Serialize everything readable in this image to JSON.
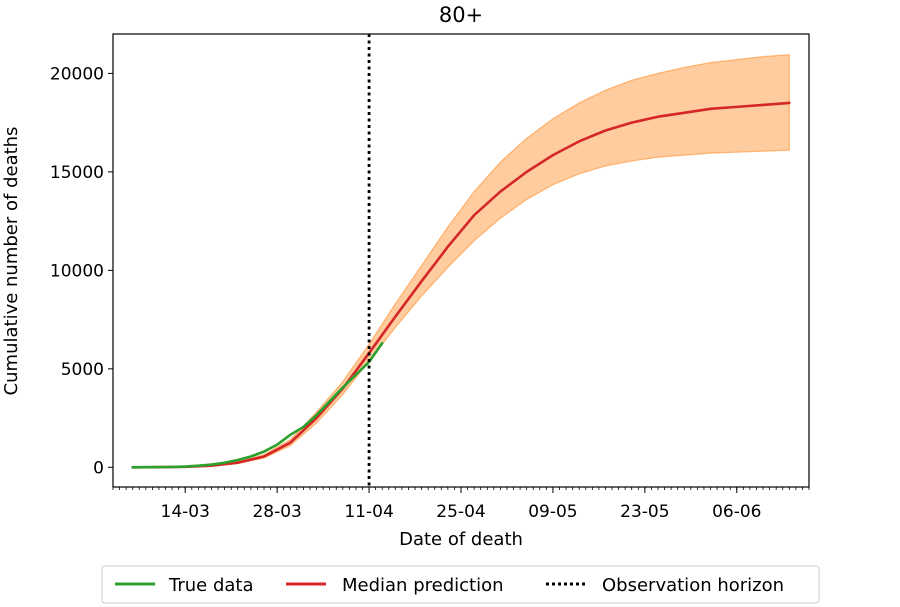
{
  "chart_data": {
    "type": "line",
    "title": "80+",
    "xlabel": "Date of death",
    "ylabel": "Cumulative number of deaths",
    "x_ticks": [
      "14-03",
      "28-03",
      "11-04",
      "25-04",
      "09-05",
      "23-05",
      "06-06"
    ],
    "y_ticks": [
      "0",
      "5000",
      "10000",
      "15000",
      "20000"
    ],
    "ylim": [
      -1000,
      22000
    ],
    "xlim": [
      "2020-03-03",
      "2020-06-17"
    ],
    "grid": false,
    "legend_position": "bottom",
    "observation_horizon": "2020-04-11",
    "series": [
      {
        "name": "True data",
        "color": "#2ca02c",
        "x": [
          "2020-03-06",
          "2020-03-08",
          "2020-03-10",
          "2020-03-12",
          "2020-03-14",
          "2020-03-16",
          "2020-03-18",
          "2020-03-20",
          "2020-03-22",
          "2020-03-24",
          "2020-03-26",
          "2020-03-28",
          "2020-03-30",
          "2020-04-01",
          "2020-04-03",
          "2020-04-05",
          "2020-04-07",
          "2020-04-09",
          "2020-04-11",
          "2020-04-13"
        ],
        "values": [
          0,
          5,
          10,
          20,
          40,
          80,
          140,
          230,
          370,
          550,
          800,
          1150,
          1650,
          2050,
          2650,
          3350,
          4050,
          4700,
          5350,
          6300
        ]
      },
      {
        "name": "Median prediction",
        "color": "#d62728",
        "x": [
          "2020-03-06",
          "2020-03-10",
          "2020-03-14",
          "2020-03-18",
          "2020-03-22",
          "2020-03-26",
          "2020-03-30",
          "2020-04-03",
          "2020-04-07",
          "2020-04-11",
          "2020-04-15",
          "2020-04-19",
          "2020-04-23",
          "2020-04-27",
          "2020-05-01",
          "2020-05-05",
          "2020-05-09",
          "2020-05-13",
          "2020-05-17",
          "2020-05-21",
          "2020-05-25",
          "2020-05-29",
          "2020-06-02",
          "2020-06-06",
          "2020-06-10",
          "2020-06-14"
        ],
        "values": [
          0,
          5,
          25,
          80,
          230,
          550,
          1250,
          2500,
          4000,
          5800,
          7650,
          9450,
          11200,
          12800,
          14000,
          15000,
          15850,
          16550,
          17100,
          17500,
          17800,
          18000,
          18200,
          18300,
          18400,
          18500
        ]
      }
    ],
    "band": {
      "color": "#ff7f0e",
      "x": [
        "2020-03-06",
        "2020-03-10",
        "2020-03-14",
        "2020-03-18",
        "2020-03-22",
        "2020-03-26",
        "2020-03-30",
        "2020-04-03",
        "2020-04-07",
        "2020-04-11",
        "2020-04-15",
        "2020-04-19",
        "2020-04-23",
        "2020-04-27",
        "2020-05-01",
        "2020-05-05",
        "2020-05-09",
        "2020-05-13",
        "2020-05-17",
        "2020-05-21",
        "2020-05-25",
        "2020-05-29",
        "2020-06-02",
        "2020-06-06",
        "2020-06-10",
        "2020-06-14"
      ],
      "lower": [
        0,
        3,
        20,
        65,
        190,
        470,
        1100,
        2250,
        3700,
        5400,
        7100,
        8700,
        10150,
        11500,
        12650,
        13600,
        14350,
        14900,
        15300,
        15550,
        15750,
        15850,
        15950,
        16000,
        16050,
        16100
      ],
      "upper": [
        0,
        7,
        30,
        95,
        270,
        640,
        1400,
        2800,
        4350,
        6250,
        8300,
        10250,
        12200,
        14000,
        15500,
        16700,
        17700,
        18500,
        19150,
        19650,
        20000,
        20300,
        20550,
        20700,
        20850,
        20950
      ]
    }
  },
  "legend": {
    "items": [
      {
        "label": "True data",
        "style": "solid",
        "color": "#2ca02c"
      },
      {
        "label": "Median prediction",
        "style": "solid",
        "color": "#d62728"
      },
      {
        "label": "Observation horizon",
        "style": "dotted",
        "color": "#000000"
      }
    ]
  }
}
